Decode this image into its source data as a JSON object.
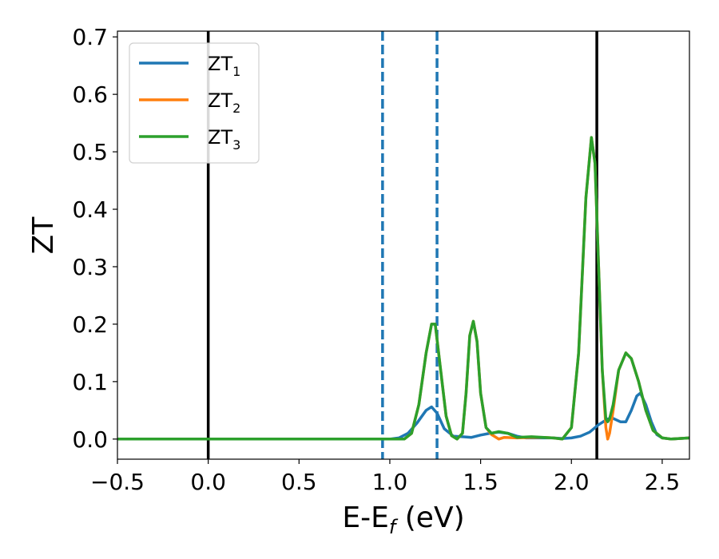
{
  "chart_data": {
    "type": "line",
    "xlabel": "E-E",
    "xlabel_sub": "f",
    "xlabel_unit": " (eV)",
    "ylabel": "ZT",
    "xlim": [
      -0.5,
      2.65
    ],
    "ylim": [
      -0.035,
      0.71
    ],
    "xticks": [
      -0.5,
      0.0,
      0.5,
      1.0,
      1.5,
      2.0,
      2.5
    ],
    "xtick_labels": [
      "−0.5",
      "0.0",
      "0.5",
      "1.0",
      "1.5",
      "2.0",
      "2.5"
    ],
    "yticks": [
      0.0,
      0.1,
      0.2,
      0.3,
      0.4,
      0.5,
      0.6,
      0.7
    ],
    "ytick_labels": [
      "0.0",
      "0.1",
      "0.2",
      "0.3",
      "0.4",
      "0.5",
      "0.6",
      "0.7"
    ],
    "grid": false,
    "legend_position": "upper-left",
    "vlines": [
      {
        "x": 0.0,
        "color": "#000000",
        "style": "solid"
      },
      {
        "x": 2.14,
        "color": "#000000",
        "style": "solid"
      },
      {
        "x": 0.96,
        "color": "#1f77b4",
        "style": "dashed"
      },
      {
        "x": 1.26,
        "color": "#1f77b4",
        "style": "dashed"
      }
    ],
    "series": [
      {
        "name": "ZT",
        "sub": "1",
        "color": "#1f77b4",
        "points": [
          [
            -0.5,
            0
          ],
          [
            0.96,
            0
          ],
          [
            1.0,
            0.0
          ],
          [
            1.05,
            0.002
          ],
          [
            1.1,
            0.01
          ],
          [
            1.15,
            0.028
          ],
          [
            1.2,
            0.05
          ],
          [
            1.23,
            0.056
          ],
          [
            1.26,
            0.045
          ],
          [
            1.3,
            0.018
          ],
          [
            1.35,
            0.005
          ],
          [
            1.4,
            0.004
          ],
          [
            1.45,
            0.003
          ],
          [
            1.5,
            0.007
          ],
          [
            1.55,
            0.01
          ],
          [
            1.6,
            0.012
          ],
          [
            1.65,
            0.01
          ],
          [
            1.7,
            0.005
          ],
          [
            1.75,
            0.002
          ],
          [
            1.8,
            0.002
          ],
          [
            1.85,
            0.002
          ],
          [
            1.9,
            0.002
          ],
          [
            1.95,
            0.001
          ],
          [
            2.0,
            0.002
          ],
          [
            2.05,
            0.005
          ],
          [
            2.1,
            0.012
          ],
          [
            2.15,
            0.025
          ],
          [
            2.2,
            0.035
          ],
          [
            2.23,
            0.036
          ],
          [
            2.27,
            0.03
          ],
          [
            2.3,
            0.03
          ],
          [
            2.33,
            0.05
          ],
          [
            2.36,
            0.075
          ],
          [
            2.38,
            0.08
          ],
          [
            2.41,
            0.06
          ],
          [
            2.44,
            0.03
          ],
          [
            2.47,
            0.008
          ],
          [
            2.5,
            0.002
          ],
          [
            2.55,
            0.0
          ],
          [
            2.65,
            0.002
          ]
        ]
      },
      {
        "name": "ZT",
        "sub": "2",
        "color": "#ff7f0e",
        "points": [
          [
            -0.5,
            0
          ],
          [
            0.96,
            0
          ],
          [
            1.08,
            0.0
          ],
          [
            1.12,
            0.01
          ],
          [
            1.16,
            0.06
          ],
          [
            1.2,
            0.15
          ],
          [
            1.23,
            0.2
          ],
          [
            1.25,
            0.2
          ],
          [
            1.28,
            0.12
          ],
          [
            1.31,
            0.04
          ],
          [
            1.34,
            0.006
          ],
          [
            1.37,
            0.0
          ],
          [
            1.4,
            0.01
          ],
          [
            1.42,
            0.08
          ],
          [
            1.44,
            0.18
          ],
          [
            1.46,
            0.205
          ],
          [
            1.48,
            0.17
          ],
          [
            1.5,
            0.08
          ],
          [
            1.53,
            0.02
          ],
          [
            1.56,
            0.008
          ],
          [
            1.6,
            0.0
          ],
          [
            1.63,
            0.003
          ],
          [
            1.7,
            0.002
          ],
          [
            1.78,
            0.003
          ],
          [
            1.85,
            0.003
          ],
          [
            1.9,
            0.002
          ],
          [
            1.95,
            0.0
          ],
          [
            2.0,
            0.02
          ],
          [
            2.04,
            0.15
          ],
          [
            2.08,
            0.42
          ],
          [
            2.11,
            0.525
          ],
          [
            2.13,
            0.48
          ],
          [
            2.15,
            0.3
          ],
          [
            2.17,
            0.12
          ],
          [
            2.19,
            0.02
          ],
          [
            2.2,
            0.0
          ],
          [
            2.21,
            0.01
          ],
          [
            2.23,
            0.05
          ],
          [
            2.26,
            0.12
          ],
          [
            2.3,
            0.15
          ],
          [
            2.33,
            0.14
          ],
          [
            2.37,
            0.1
          ],
          [
            2.41,
            0.05
          ],
          [
            2.45,
            0.015
          ],
          [
            2.5,
            0.002
          ],
          [
            2.55,
            0.0
          ],
          [
            2.65,
            0.002
          ]
        ]
      },
      {
        "name": "ZT",
        "sub": "3",
        "color": "#2ca02c",
        "points": [
          [
            -0.5,
            0
          ],
          [
            0.96,
            0
          ],
          [
            1.08,
            0.0
          ],
          [
            1.12,
            0.01
          ],
          [
            1.16,
            0.06
          ],
          [
            1.2,
            0.15
          ],
          [
            1.23,
            0.2
          ],
          [
            1.25,
            0.2
          ],
          [
            1.28,
            0.12
          ],
          [
            1.31,
            0.04
          ],
          [
            1.34,
            0.006
          ],
          [
            1.37,
            0.0
          ],
          [
            1.4,
            0.01
          ],
          [
            1.42,
            0.08
          ],
          [
            1.44,
            0.18
          ],
          [
            1.46,
            0.205
          ],
          [
            1.48,
            0.17
          ],
          [
            1.5,
            0.08
          ],
          [
            1.53,
            0.02
          ],
          [
            1.56,
            0.01
          ],
          [
            1.6,
            0.013
          ],
          [
            1.65,
            0.01
          ],
          [
            1.7,
            0.003
          ],
          [
            1.78,
            0.004
          ],
          [
            1.85,
            0.003
          ],
          [
            1.9,
            0.002
          ],
          [
            1.95,
            0.0
          ],
          [
            2.0,
            0.02
          ],
          [
            2.04,
            0.15
          ],
          [
            2.08,
            0.42
          ],
          [
            2.11,
            0.525
          ],
          [
            2.13,
            0.48
          ],
          [
            2.15,
            0.3
          ],
          [
            2.17,
            0.12
          ],
          [
            2.19,
            0.035
          ],
          [
            2.2,
            0.03
          ],
          [
            2.21,
            0.035
          ],
          [
            2.23,
            0.06
          ],
          [
            2.26,
            0.12
          ],
          [
            2.3,
            0.15
          ],
          [
            2.33,
            0.14
          ],
          [
            2.37,
            0.1
          ],
          [
            2.41,
            0.05
          ],
          [
            2.45,
            0.015
          ],
          [
            2.5,
            0.002
          ],
          [
            2.55,
            0.0
          ],
          [
            2.65,
            0.002
          ]
        ]
      }
    ]
  }
}
